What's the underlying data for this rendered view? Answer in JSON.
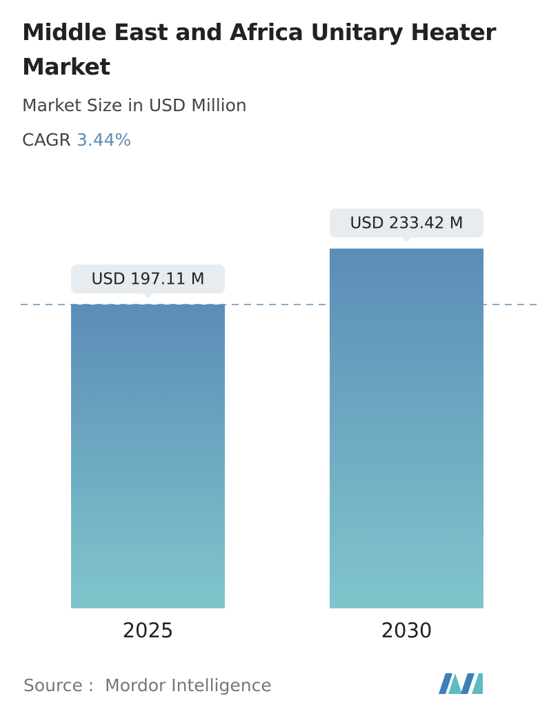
{
  "chart_data": {
    "type": "bar",
    "title": "Middle East and Africa Unitary Heater Market",
    "subtitle": "Market Size in USD Million",
    "cagr_label": "CAGR",
    "cagr": "3.44%",
    "categories": [
      "2025",
      "2030"
    ],
    "values": [
      197.11,
      233.42
    ],
    "value_labels": [
      "USD 197.11 M",
      "USD 233.42 M"
    ],
    "color_top": "#5b8db8",
    "color_bottom": "#80c5cb",
    "source_label": "Source :",
    "source": "Mordor Intelligence"
  }
}
